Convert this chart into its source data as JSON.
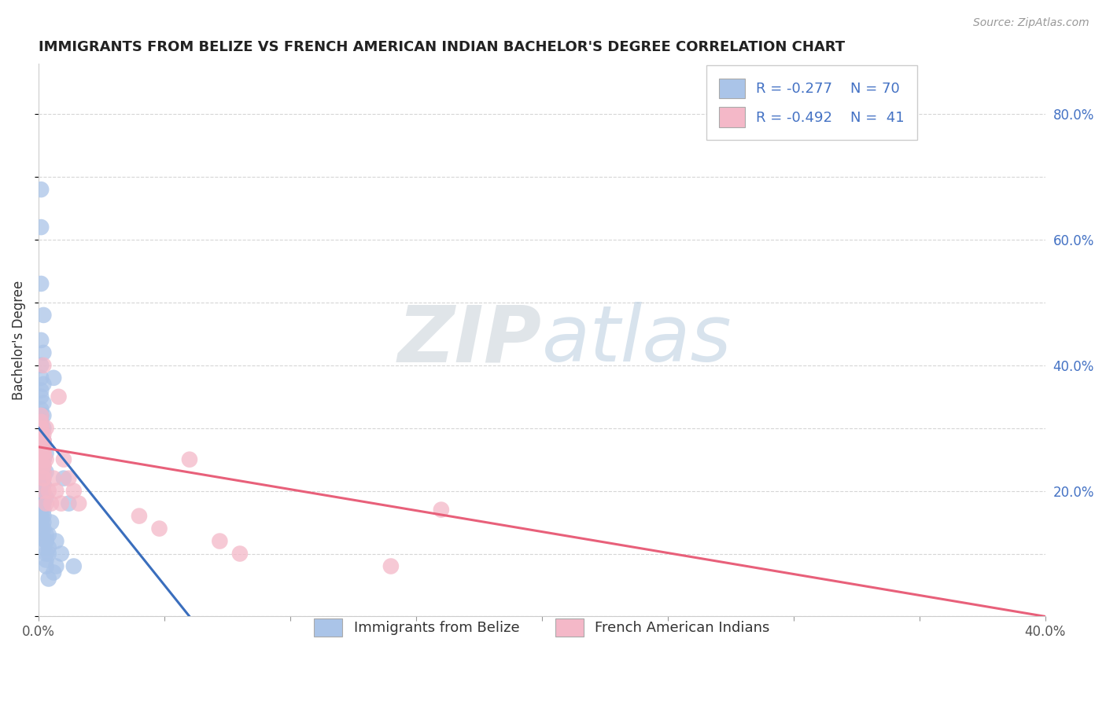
{
  "title": "IMMIGRANTS FROM BELIZE VS FRENCH AMERICAN INDIAN BACHELOR'S DEGREE CORRELATION CHART",
  "source": "Source: ZipAtlas.com",
  "ylabel": "Bachelor's Degree",
  "xlim": [
    0.0,
    0.4
  ],
  "ylim": [
    0.0,
    0.88
  ],
  "grid_color": "#cccccc",
  "background_color": "#ffffff",
  "blue_color": "#aac4e8",
  "pink_color": "#f4b8c8",
  "blue_line_color": "#3a6ebd",
  "pink_line_color": "#e8607a",
  "watermark_zip": "ZIP",
  "watermark_atlas": "atlas",
  "watermark_zip_color": "#c8d0d8",
  "watermark_atlas_color": "#b8ccdf",
  "label1": "Immigrants from Belize",
  "label2": "French American Indians",
  "blue_scatter_x": [
    0.001,
    0.001,
    0.001,
    0.002,
    0.001,
    0.002,
    0.001,
    0.001,
    0.002,
    0.001,
    0.001,
    0.002,
    0.001,
    0.001,
    0.002,
    0.001,
    0.001,
    0.002,
    0.001,
    0.001,
    0.002,
    0.001,
    0.001,
    0.002,
    0.001,
    0.003,
    0.002,
    0.002,
    0.001,
    0.001,
    0.003,
    0.002,
    0.001,
    0.001,
    0.002,
    0.002,
    0.001,
    0.001,
    0.003,
    0.002,
    0.001,
    0.002,
    0.002,
    0.001,
    0.001,
    0.002,
    0.002,
    0.001,
    0.001,
    0.002,
    0.004,
    0.003,
    0.006,
    0.003,
    0.004,
    0.004,
    0.003,
    0.002,
    0.003,
    0.003,
    0.007,
    0.006,
    0.004,
    0.01,
    0.003,
    0.012,
    0.005,
    0.007,
    0.009,
    0.014
  ],
  "blue_scatter_y": [
    0.68,
    0.62,
    0.53,
    0.48,
    0.44,
    0.42,
    0.4,
    0.38,
    0.37,
    0.36,
    0.35,
    0.34,
    0.33,
    0.32,
    0.32,
    0.31,
    0.3,
    0.3,
    0.29,
    0.29,
    0.28,
    0.28,
    0.27,
    0.27,
    0.26,
    0.26,
    0.25,
    0.25,
    0.24,
    0.24,
    0.23,
    0.23,
    0.22,
    0.22,
    0.21,
    0.21,
    0.2,
    0.2,
    0.19,
    0.19,
    0.18,
    0.18,
    0.17,
    0.17,
    0.16,
    0.16,
    0.15,
    0.15,
    0.14,
    0.14,
    0.13,
    0.13,
    0.38,
    0.12,
    0.11,
    0.1,
    0.12,
    0.11,
    0.1,
    0.09,
    0.08,
    0.07,
    0.06,
    0.22,
    0.08,
    0.18,
    0.15,
    0.12,
    0.1,
    0.08
  ],
  "pink_scatter_x": [
    0.001,
    0.002,
    0.002,
    0.001,
    0.002,
    0.002,
    0.001,
    0.002,
    0.002,
    0.002,
    0.002,
    0.002,
    0.001,
    0.002,
    0.002,
    0.002,
    0.001,
    0.001,
    0.002,
    0.002,
    0.002,
    0.003,
    0.003,
    0.003,
    0.004,
    0.005,
    0.006,
    0.007,
    0.008,
    0.009,
    0.01,
    0.012,
    0.014,
    0.016,
    0.04,
    0.048,
    0.06,
    0.072,
    0.08,
    0.14,
    0.16
  ],
  "pink_scatter_y": [
    0.3,
    0.28,
    0.26,
    0.32,
    0.29,
    0.27,
    0.31,
    0.28,
    0.26,
    0.24,
    0.25,
    0.23,
    0.3,
    0.27,
    0.22,
    0.4,
    0.28,
    0.26,
    0.24,
    0.22,
    0.2,
    0.18,
    0.3,
    0.25,
    0.2,
    0.18,
    0.22,
    0.2,
    0.35,
    0.18,
    0.25,
    0.22,
    0.2,
    0.18,
    0.16,
    0.14,
    0.25,
    0.12,
    0.1,
    0.08,
    0.17
  ],
  "blue_trend_x": [
    0.0,
    0.06
  ],
  "blue_trend_y": [
    0.3,
    0.0
  ],
  "pink_trend_x": [
    0.0,
    0.4
  ],
  "pink_trend_y": [
    0.27,
    0.0
  ]
}
